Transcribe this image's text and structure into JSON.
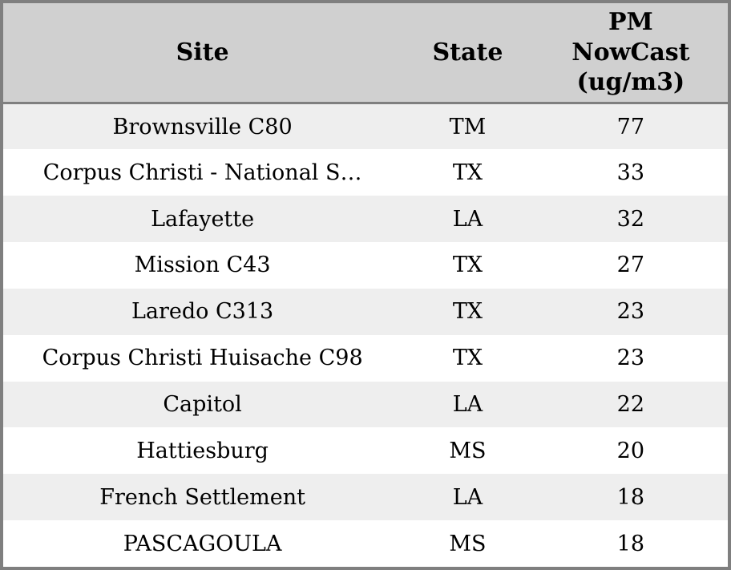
{
  "chart_data": {
    "type": "table",
    "title": "",
    "columns": [
      "Site",
      "State",
      "PM NowCast (ug/m3)"
    ],
    "rows": [
      [
        "Brownsville C80",
        "TM",
        "77"
      ],
      [
        "Corpus Christi - National S…",
        "TX",
        "33"
      ],
      [
        "Lafayette",
        "LA",
        "32"
      ],
      [
        "Mission C43",
        "TX",
        "27"
      ],
      [
        "Laredo C313",
        "TX",
        "23"
      ],
      [
        "Corpus Christi Huisache C98",
        "TX",
        "23"
      ],
      [
        "Capitol",
        "LA",
        "22"
      ],
      [
        "Hattiesburg",
        "MS",
        "20"
      ],
      [
        "French Settlement",
        "LA",
        "18"
      ],
      [
        "PASCAGOULA",
        "MS",
        "18"
      ]
    ],
    "layout": {
      "striped": true,
      "gridlines": "none",
      "header_position": "top"
    }
  },
  "colors": {
    "header_bg": "#d0d0d0",
    "row_stripe_bg": "#eeeeee",
    "row_bg": "#ffffff",
    "border": "#7f7f7f",
    "text": "#000000"
  }
}
